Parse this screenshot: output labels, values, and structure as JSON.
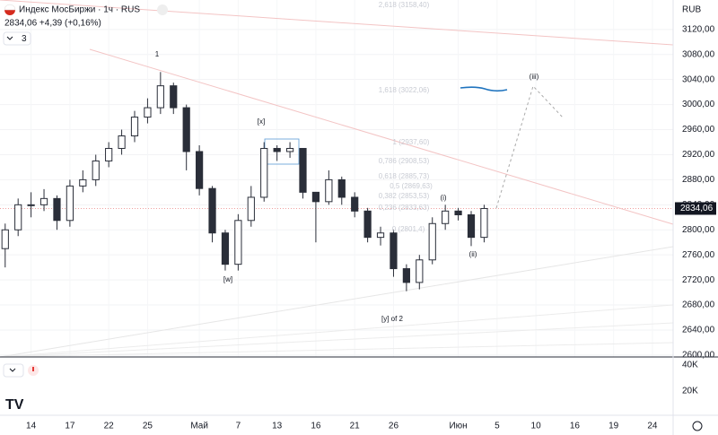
{
  "chart_data": {
    "type": "candlestick",
    "title": "Индекс МосБиржи · 1ч · RUS",
    "subtitle": "2834,06 +4,39 (+0,16%)",
    "indicator_count": 3,
    "currency": "RUB",
    "color": "#2a2e39",
    "x": [
      -2,
      -1,
      0,
      1,
      2,
      3,
      4,
      5,
      6,
      7,
      8,
      9,
      10,
      11,
      12,
      13,
      14,
      15,
      16,
      17,
      18,
      19,
      20,
      21,
      22,
      23,
      24,
      25,
      26,
      27,
      28,
      29,
      30,
      31,
      32,
      33,
      34,
      35
    ],
    "open": [
      2770,
      2800,
      2840,
      2840,
      2850,
      2815,
      2870,
      2880,
      2910,
      2930,
      2950,
      2980,
      2995,
      3030,
      2995,
      2925,
      2866,
      2795,
      2745,
      2815,
      2852,
      2930,
      2925,
      2930,
      2860,
      2845,
      2880,
      2852,
      2830,
      2788,
      2795,
      2738,
      2716,
      2752,
      2810,
      2830,
      2824,
      2788
    ],
    "high": [
      2810,
      2850,
      2860,
      2865,
      2855,
      2880,
      2895,
      2920,
      2940,
      2960,
      2990,
      3010,
      3052,
      3035,
      3000,
      2935,
      2870,
      2800,
      2825,
      2870,
      2940,
      2935,
      2940,
      2930,
      2860,
      2895,
      2885,
      2860,
      2835,
      2805,
      2800,
      2745,
      2760,
      2820,
      2840,
      2835,
      2830,
      2840
    ],
    "low": [
      2740,
      2790,
      2820,
      2830,
      2800,
      2805,
      2860,
      2870,
      2900,
      2920,
      2940,
      2970,
      2985,
      2985,
      2895,
      2855,
      2780,
      2735,
      2735,
      2805,
      2845,
      2910,
      2915,
      2850,
      2780,
      2840,
      2840,
      2820,
      2780,
      2775,
      2725,
      2702,
      2705,
      2745,
      2800,
      2815,
      2774,
      2780
    ],
    "close": [
      2800,
      2840,
      2840,
      2850,
      2815,
      2870,
      2880,
      2910,
      2930,
      2950,
      2980,
      2995,
      3030,
      2995,
      2925,
      2866,
      2795,
      2745,
      2815,
      2852,
      2930,
      2925,
      2930,
      2860,
      2845,
      2880,
      2852,
      2830,
      2788,
      2795,
      2738,
      2716,
      2752,
      2810,
      2830,
      2824,
      2788,
      2834.06
    ],
    "last_price": {
      "value": 2834.06,
      "label": "2834,06"
    },
    "xlim": [
      -2.4,
      49.6
    ],
    "xticks": [
      {
        "value": 0,
        "label": "14"
      },
      {
        "value": 3,
        "label": "17"
      },
      {
        "value": 6,
        "label": "22"
      },
      {
        "value": 9,
        "label": "25"
      },
      {
        "value": 13,
        "label": "Май"
      },
      {
        "value": 16,
        "label": "7"
      },
      {
        "value": 19,
        "label": "13"
      },
      {
        "value": 22,
        "label": "16"
      },
      {
        "value": 25,
        "label": "21"
      },
      {
        "value": 28,
        "label": "26"
      },
      {
        "value": 33,
        "label": "Июн"
      },
      {
        "value": 36,
        "label": "5"
      },
      {
        "value": 39,
        "label": "10"
      },
      {
        "value": 42,
        "label": "16"
      },
      {
        "value": 45,
        "label": "19"
      },
      {
        "value": 48,
        "label": "24"
      }
    ],
    "ylim": [
      2597,
      3167
    ],
    "yticks": [
      {
        "value": 2600,
        "label": "2600,00"
      },
      {
        "value": 2640,
        "label": "2640,00"
      },
      {
        "value": 2680,
        "label": "2680,00"
      },
      {
        "value": 2720,
        "label": "2720,00"
      },
      {
        "value": 2760,
        "label": "2760,00"
      },
      {
        "value": 2800,
        "label": "2800,00"
      },
      {
        "value": 2840,
        "label": "2840,00"
      },
      {
        "value": 2880,
        "label": "2880,00"
      },
      {
        "value": 2920,
        "label": "2920,00"
      },
      {
        "value": 2960,
        "label": "2960,00"
      },
      {
        "value": 3000,
        "label": "3000,00"
      },
      {
        "value": 3040,
        "label": "3040,00"
      },
      {
        "value": 3080,
        "label": "3080,00"
      },
      {
        "value": 3120,
        "label": "3120,00"
      }
    ],
    "volume_ylim": [
      0,
      44800
    ],
    "volume_ticks": [
      {
        "value": 40000,
        "label": "40K"
      },
      {
        "value": 20000,
        "label": "20K"
      }
    ],
    "annotations": [
      "1",
      "[x]",
      "[w]",
      "[y] of 2",
      "(i)",
      "(ii)",
      "(iii)"
    ],
    "fib_labels": [
      "2,618 (3158,40)",
      "1,618 (3022,06)",
      "1 (2937,60)",
      "0,786 (2908,53)",
      "0,618 (2885,73)",
      "0,5 (2869,63)",
      "0,382 (2853,53)",
      "0,236 (2833,63)",
      "0 (2801,4)"
    ]
  }
}
